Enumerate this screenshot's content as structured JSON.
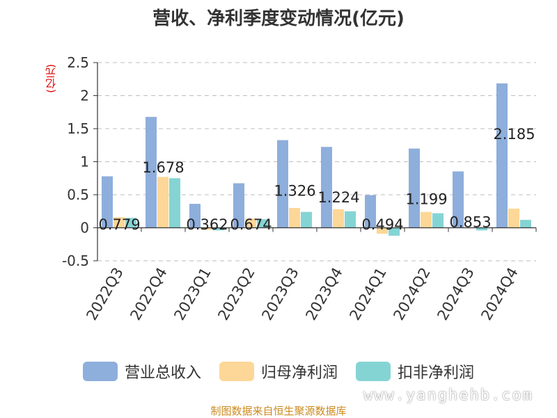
{
  "chart_data": {
    "type": "bar",
    "title": "营收、净利季度变动情况(亿元)",
    "unit_label": "(亿元)",
    "categories": [
      "2022Q3",
      "2022Q4",
      "2023Q1",
      "2023Q2",
      "2023Q3",
      "2023Q4",
      "2024Q1",
      "2024Q2",
      "2024Q3",
      "2024Q4"
    ],
    "series": [
      {
        "name": "营业总收入",
        "color": "#8eaedc",
        "values": [
          0.779,
          1.678,
          0.362,
          0.674,
          1.326,
          1.224,
          0.494,
          1.199,
          0.853,
          2.185
        ]
      },
      {
        "name": "归母净利润",
        "color": "#fdd797",
        "values": [
          0.16,
          0.77,
          -0.03,
          0.14,
          0.3,
          0.28,
          -0.09,
          0.24,
          0.0,
          0.29
        ]
      },
      {
        "name": "扣非净利润",
        "color": "#85d4d4",
        "values": [
          0.15,
          0.75,
          -0.04,
          0.13,
          0.24,
          0.25,
          -0.12,
          0.22,
          -0.04,
          0.12
        ]
      }
    ],
    "data_labels": [
      "0.779",
      "1.678",
      "0.362",
      "0.674",
      "1.326",
      "1.224",
      "0.494",
      "1.199",
      "0.853",
      "2.185"
    ],
    "ylim": [
      -0.5,
      2.5
    ],
    "yticks": [
      "-0.5",
      "0",
      "0.5",
      "1",
      "1.5",
      "2",
      "2.5"
    ],
    "grid": true,
    "legend_position": "bottom"
  },
  "footer": {
    "source": "制图数据来自恒生聚源数据库",
    "watermark": "www.yanghehb.com"
  }
}
